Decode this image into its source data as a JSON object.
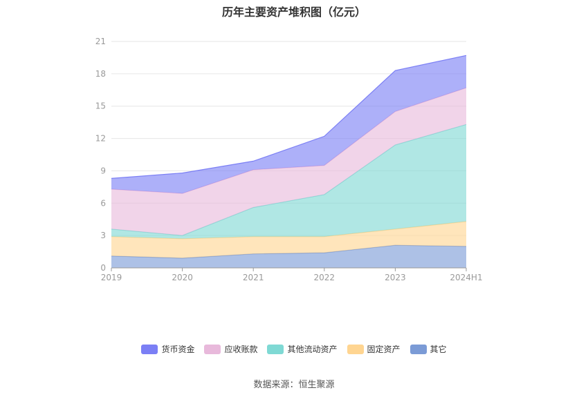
{
  "chart_data": {
    "type": "area",
    "stacked": true,
    "title": "历年主要资产堆积图（亿元）",
    "source": "数据来源：恒生聚源",
    "categories": [
      "2019",
      "2020",
      "2021",
      "2022",
      "2023",
      "2024H1"
    ],
    "ylim": [
      0,
      21
    ],
    "yticks": [
      0,
      3,
      6,
      9,
      12,
      15,
      18,
      21
    ],
    "grid": true,
    "legend_position": "bottom",
    "series": [
      {
        "name": "其它",
        "color": "#7b9bd6",
        "values": [
          1.1,
          0.9,
          1.3,
          1.4,
          2.1,
          2.0
        ]
      },
      {
        "name": "固定资产",
        "color": "#ffd591",
        "values": [
          1.8,
          1.8,
          1.6,
          1.5,
          1.5,
          2.3
        ]
      },
      {
        "name": "其他流动资产",
        "color": "#7fd9d4",
        "values": [
          0.7,
          0.3,
          2.7,
          3.9,
          7.8,
          9.0
        ]
      },
      {
        "name": "应收账款",
        "color": "#e8b9db",
        "values": [
          3.7,
          3.9,
          3.5,
          2.7,
          3.1,
          3.4
        ]
      },
      {
        "name": "货币资金",
        "color": "#7b7ff5",
        "values": [
          1.0,
          1.9,
          0.8,
          2.7,
          3.8,
          3.0
        ]
      }
    ],
    "legend_order": [
      "货币资金",
      "应收账款",
      "其他流动资产",
      "固定资产",
      "其它"
    ]
  }
}
